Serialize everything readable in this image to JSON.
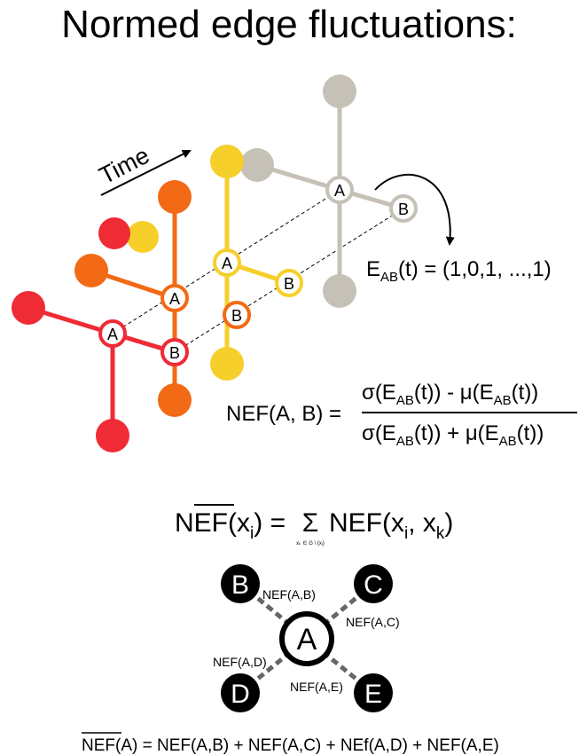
{
  "title": "Normed edge fluctuations:",
  "time_label": "Time",
  "colors": {
    "red": "#ef2b35",
    "orange": "#f26a15",
    "yellow": "#f6cf2a",
    "gray": "#c6c1b6",
    "black": "#000000"
  },
  "node_labels": {
    "a": "A",
    "b": "B"
  },
  "edge_series": {
    "symbol": "E",
    "subscript": "AB",
    "arg": "(t) = (1,0,1, ...,1)"
  },
  "nef_formula": {
    "lhs": "NEF(A, B) =",
    "num_1": "σ(E",
    "num_2": "(t)) - μ(E",
    "num_3": "(t))",
    "den_1": "σ(E",
    "den_2": "(t)) + μ(E",
    "den_3": "(t))",
    "sub": "AB"
  },
  "sum_formula": {
    "lhs_n": "N",
    "lhs_ef": "EF",
    "lhs_arg": "(x",
    "lhs_sub": "i",
    "lhs_close": ") =",
    "sigma": "Σ",
    "sigma_sub": "xₖ ∈ G \\ {xᵢ}",
    "rhs_1": "NEF(x",
    "rhs_sub_i": "i",
    "rhs_2": ", x",
    "rhs_sub_k": "k",
    "rhs_3": ")"
  },
  "star": {
    "center": "A",
    "leaves": [
      "B",
      "C",
      "D",
      "E"
    ],
    "edges": [
      "NEF(A,B)",
      "NEF(A,C)",
      "NEF(A,D)",
      "NEF(A,E)"
    ]
  },
  "bottom_formula": {
    "lhs": "NEF",
    "rest": "(A) = NEF(A,B) + NEF(A,C) + NEf(A,D) + NEF(A,E)"
  }
}
